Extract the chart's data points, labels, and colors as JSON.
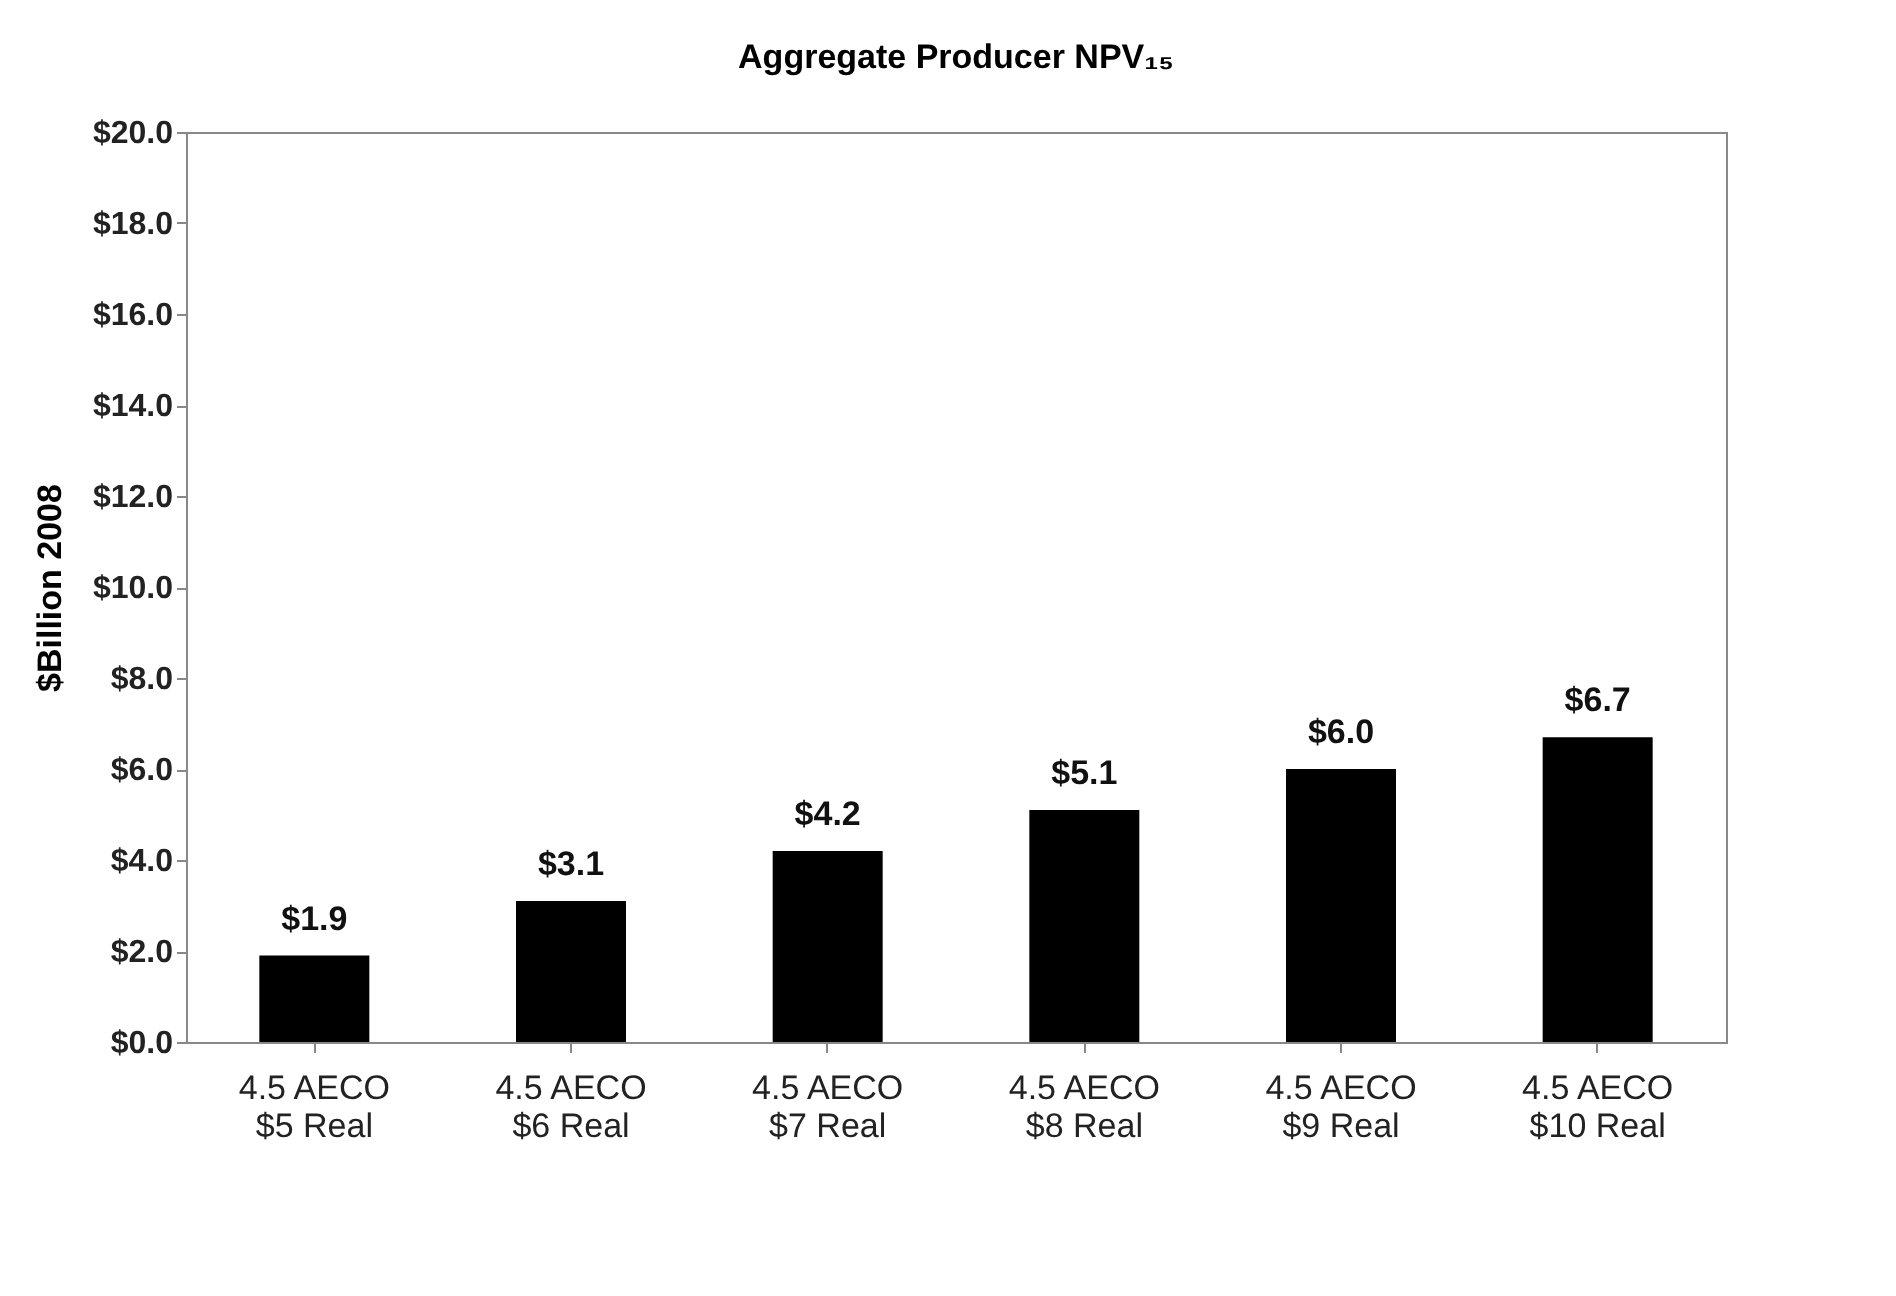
{
  "chart_data": {
    "type": "bar",
    "title": "Aggregate Producer NPV₁₅",
    "ylabel": "$Billion 2008",
    "categories": [
      "4.5 AECO\n$5 Real",
      "4.5 AECO\n$6 Real",
      "4.5 AECO\n$7 Real",
      "4.5 AECO\n$8 Real",
      "4.5 AECO\n$9 Real",
      "4.5 AECO\n$10 Real"
    ],
    "values": [
      1.9,
      3.1,
      4.2,
      5.1,
      6.0,
      6.7
    ],
    "value_labels": [
      "$1.9",
      "$3.1",
      "$4.2",
      "$5.1",
      "$6.0",
      "$6.7"
    ],
    "color": "#000000",
    "ylim": [
      0,
      20
    ],
    "yticks": [
      {
        "value": 0,
        "label": "$0.0"
      },
      {
        "value": 2,
        "label": "$2.0"
      },
      {
        "value": 4,
        "label": "$4.0"
      },
      {
        "value": 6,
        "label": "$6.0"
      },
      {
        "value": 8,
        "label": "$8.0"
      },
      {
        "value": 10,
        "label": "$10.0"
      },
      {
        "value": 12,
        "label": "$12.0"
      },
      {
        "value": 14,
        "label": "$14.0"
      },
      {
        "value": 16,
        "label": "$16.0"
      },
      {
        "value": 18,
        "label": "$18.0"
      },
      {
        "value": 20,
        "label": "$20.0"
      }
    ],
    "grid": false
  }
}
